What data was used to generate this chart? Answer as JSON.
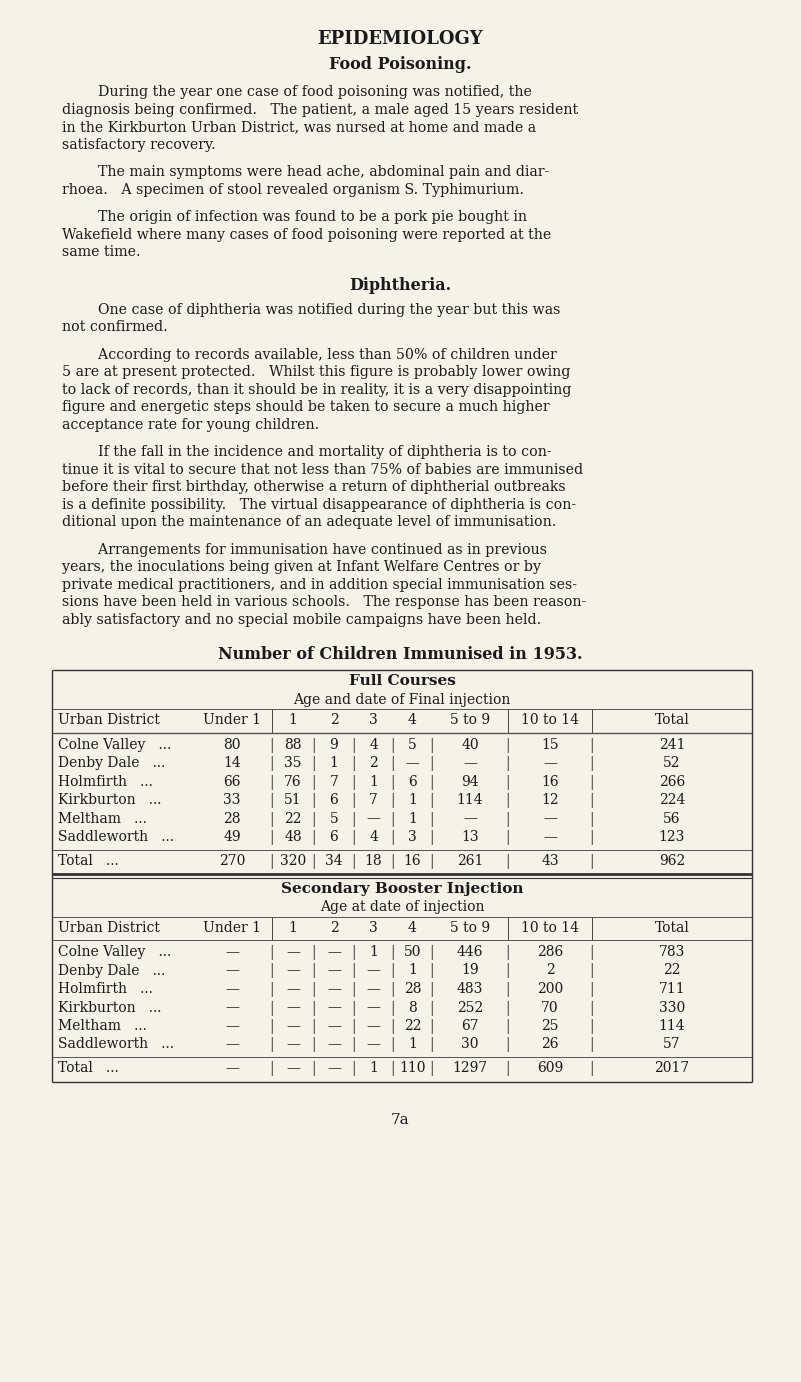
{
  "bg_color": "#f5f2e8",
  "text_color": "#1a1a1a",
  "title": "EPIDEMIOLOGY",
  "subtitle": "Food Poisoning.",
  "para1_indent": "        During the year one case of food poisoning was notified, the",
  "para1_rest": [
    "diagnosis being confirmed.   The patient, a male aged 15 years resident",
    "in the Kirkburton Urban District, was nursed at home and made a",
    "satisfactory recovery."
  ],
  "para2_indent": "        The main symptoms were head ache, abdominal pain and diar-",
  "para2_rest": [
    "rhoea.   A specimen of stool revealed organism S. Typhimurium."
  ],
  "para3_indent": "        The origin of infection was found to be a pork pie bought in",
  "para3_rest": [
    "Wakefield where many cases of food poisoning were reported at the",
    "same time."
  ],
  "subtitle2": "Diphtheria.",
  "para4_indent": "        One case of diphtheria was notified during the year but this was",
  "para4_rest": [
    "not confirmed."
  ],
  "para5_indent": "        According to records available, less than 50% of children under",
  "para5_rest": [
    "5 are at present protected.   Whilst this figure is probably lower owing",
    "to lack of records, than it should be in reality, it is a very disappointing",
    "figure and energetic steps should be taken to secure a much higher",
    "acceptance rate for young children."
  ],
  "para6_indent": "        If the fall in the incidence and mortality of diphtheria is to con-",
  "para6_rest": [
    "tinue it is vital to secure that not less than 75% of babies are immunised",
    "before their first birthday, otherwise a return of diphtherial outbreaks",
    "is a definite possibility.   The virtual disappearance of diphtheria is con-",
    "ditional upon the maintenance of an adequate level of immunisation."
  ],
  "para7_indent": "        Arrangements for immunisation have continued as in previous",
  "para7_rest": [
    "years, the inoculations being given at Infant Welfare Centres or by",
    "private medical practitioners, and in addition special immunisation ses-",
    "sions have been held in various schools.   The response has been reason-",
    "ably satisfactory and no special mobile campaigns have been held."
  ],
  "table_title": "Number of Children Immunised in 1953.",
  "page_num": "7a",
  "full_courses_header1": "Full Courses",
  "full_courses_header2": "Age and date of Final injection",
  "col_labels": [
    "Under 1",
    "1",
    "2",
    "3",
    "4",
    "5 to 9",
    "10 to 14",
    "Total"
  ],
  "full_rows": [
    [
      "Colne Valley   ...",
      "80",
      "88",
      "9",
      "4",
      "5",
      "40",
      "15",
      "241"
    ],
    [
      "Denby Dale   ...",
      "14",
      "35",
      "1",
      "2",
      "—",
      "—",
      "—",
      "52"
    ],
    [
      "Holmfirth   ...",
      "66",
      "76",
      "7",
      "1",
      "6",
      "94",
      "16",
      "266"
    ],
    [
      "Kirkburton   ...",
      "33",
      "51",
      "6",
      "7",
      "1",
      "114",
      "12",
      "224"
    ],
    [
      "Meltham   ...",
      "28",
      "22",
      "5",
      "—",
      "1",
      "—",
      "—",
      "56"
    ],
    [
      "Saddleworth   ...",
      "49",
      "48",
      "6",
      "4",
      "3",
      "13",
      "—",
      "123"
    ]
  ],
  "full_total": [
    "Total   ...",
    "270",
    "320",
    "34",
    "18",
    "16",
    "261",
    "43",
    "962"
  ],
  "secondary_header1": "Secondary Booster Injection",
  "secondary_header2": "Age at date of injection",
  "sec_rows": [
    [
      "Colne Valley   ...",
      "—",
      "—",
      "—",
      "1",
      "50",
      "446",
      "286",
      "783"
    ],
    [
      "Denby Dale   ...",
      "—",
      "—",
      "—",
      "—",
      "1",
      "19",
      "2",
      "22"
    ],
    [
      "Holmfirth   ...",
      "—",
      "—",
      "—",
      "—",
      "28",
      "483",
      "200",
      "711"
    ],
    [
      "Kirkburton   ...",
      "—",
      "—",
      "—",
      "—",
      "8",
      "252",
      "70",
      "330"
    ],
    [
      "Meltham   ...",
      "—",
      "—",
      "—",
      "—",
      "22",
      "67",
      "25",
      "114"
    ],
    [
      "Saddleworth   ...",
      "—",
      "—",
      "—",
      "—",
      "1",
      "30",
      "26",
      "57"
    ]
  ],
  "sec_total": [
    "Total   ...",
    "—",
    "—",
    "—",
    "1",
    "110",
    "1297",
    "609",
    "2017"
  ]
}
